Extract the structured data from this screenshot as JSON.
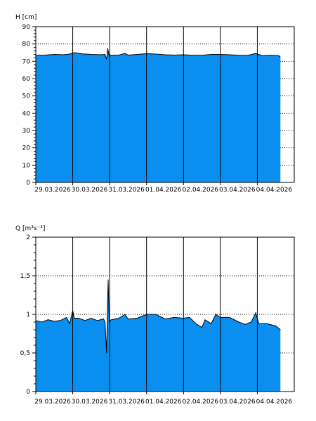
{
  "chart_data": [
    {
      "type": "area",
      "ylabel": "H [cm]",
      "ylim": [
        0,
        90
      ],
      "yticks": [
        0,
        10,
        20,
        30,
        40,
        50,
        60,
        70,
        80,
        90
      ],
      "xlim": [
        "2026-03-29T00:00",
        "2026-04-05T00:00"
      ],
      "xticks": [
        "29.03.2026",
        "30.03.2026",
        "31.03.2026",
        "01.04.2026",
        "02.04.2026",
        "03.04.2026",
        "04.04.2026"
      ],
      "grid": true,
      "fill_color": "#0a8ff0",
      "x": [
        "2026-03-29T00:00",
        "2026-03-29T06:00",
        "2026-03-29T12:00",
        "2026-03-29T18:00",
        "2026-03-29T22:00",
        "2026-03-30T01:00",
        "2026-03-30T06:00",
        "2026-03-30T12:00",
        "2026-03-30T18:00",
        "2026-03-30T21:00",
        "2026-03-30T22:00",
        "2026-03-30T22:45",
        "2026-03-30T23:30",
        "2026-03-31T00:30",
        "2026-03-31T06:00",
        "2026-03-31T10:00",
        "2026-03-31T12:00",
        "2026-03-31T18:00",
        "2026-04-01T00:00",
        "2026-04-01T06:00",
        "2026-04-01T12:00",
        "2026-04-01T18:00",
        "2026-04-02T00:00",
        "2026-04-02T06:00",
        "2026-04-02T12:00",
        "2026-04-02T18:00",
        "2026-04-03T00:00",
        "2026-04-03T06:00",
        "2026-04-03T12:00",
        "2026-04-03T18:00",
        "2026-04-03T23:00",
        "2026-04-04T03:00",
        "2026-04-04T09:00",
        "2026-04-04T14:00",
        "2026-04-04T15:00"
      ],
      "y": [
        73.5,
        73.6,
        74.0,
        73.8,
        74.2,
        75.0,
        74.3,
        74.0,
        73.8,
        74.0,
        71.0,
        77.5,
        74.0,
        73.5,
        73.6,
        74.5,
        73.6,
        74.0,
        74.4,
        74.2,
        73.8,
        73.6,
        73.8,
        73.5,
        73.5,
        74.0,
        74.0,
        73.8,
        73.5,
        73.4,
        74.6,
        73.3,
        73.4,
        73.2,
        72.5
      ]
    },
    {
      "type": "area",
      "ylabel": "Q [m³s⁻¹]",
      "ylim": [
        0,
        2
      ],
      "yticks": [
        0,
        0.5,
        1,
        1.5,
        2
      ],
      "ytick_labels": [
        "0",
        "0,5",
        "1",
        "1,5",
        "2"
      ],
      "xlim": [
        "2026-03-29T00:00",
        "2026-04-05T00:00"
      ],
      "xticks": [
        "29.03.2026",
        "30.03.2026",
        "31.03.2026",
        "01.04.2026",
        "02.04.2026",
        "03.04.2026",
        "04.04.2026"
      ],
      "grid": true,
      "fill_color": "#0a8ff0",
      "x": [
        "2026-03-29T00:00",
        "2026-03-29T04:00",
        "2026-03-29T08:00",
        "2026-03-29T12:00",
        "2026-03-29T16:00",
        "2026-03-29T20:00",
        "2026-03-29T22:00",
        "2026-03-30T00:00",
        "2026-03-30T01:00",
        "2026-03-30T04:00",
        "2026-03-30T08:00",
        "2026-03-30T12:00",
        "2026-03-30T16:00",
        "2026-03-30T20:00",
        "2026-03-30T21:00",
        "2026-03-30T22:00",
        "2026-03-30T23:00",
        "2026-03-30T23:45",
        "2026-03-31T01:00",
        "2026-03-31T06:00",
        "2026-03-31T10:00",
        "2026-03-31T12:00",
        "2026-03-31T18:00",
        "2026-04-01T00:00",
        "2026-04-01T06:00",
        "2026-04-01T12:00",
        "2026-04-01T18:00",
        "2026-04-02T00:00",
        "2026-04-02T04:00",
        "2026-04-02T08:00",
        "2026-04-02T12:00",
        "2026-04-02T14:00",
        "2026-04-02T18:00",
        "2026-04-02T21:00",
        "2026-04-03T00:00",
        "2026-04-03T06:00",
        "2026-04-03T12:00",
        "2026-04-03T16:00",
        "2026-04-03T20:00",
        "2026-04-03T23:00",
        "2026-04-04T01:00",
        "2026-04-04T06:00",
        "2026-04-04T12:00",
        "2026-04-04T15:00"
      ],
      "y": [
        0.92,
        0.9,
        0.93,
        0.91,
        0.92,
        0.96,
        0.88,
        1.05,
        0.95,
        0.95,
        0.92,
        0.95,
        0.92,
        0.94,
        0.9,
        0.5,
        1.45,
        0.9,
        0.93,
        0.95,
        1.0,
        0.94,
        0.95,
        1.0,
        1.0,
        0.94,
        0.96,
        0.95,
        0.96,
        0.88,
        0.83,
        0.93,
        0.88,
        1.0,
        0.96,
        0.96,
        0.9,
        0.87,
        0.9,
        1.02,
        0.88,
        0.88,
        0.85,
        0.8
      ]
    }
  ]
}
